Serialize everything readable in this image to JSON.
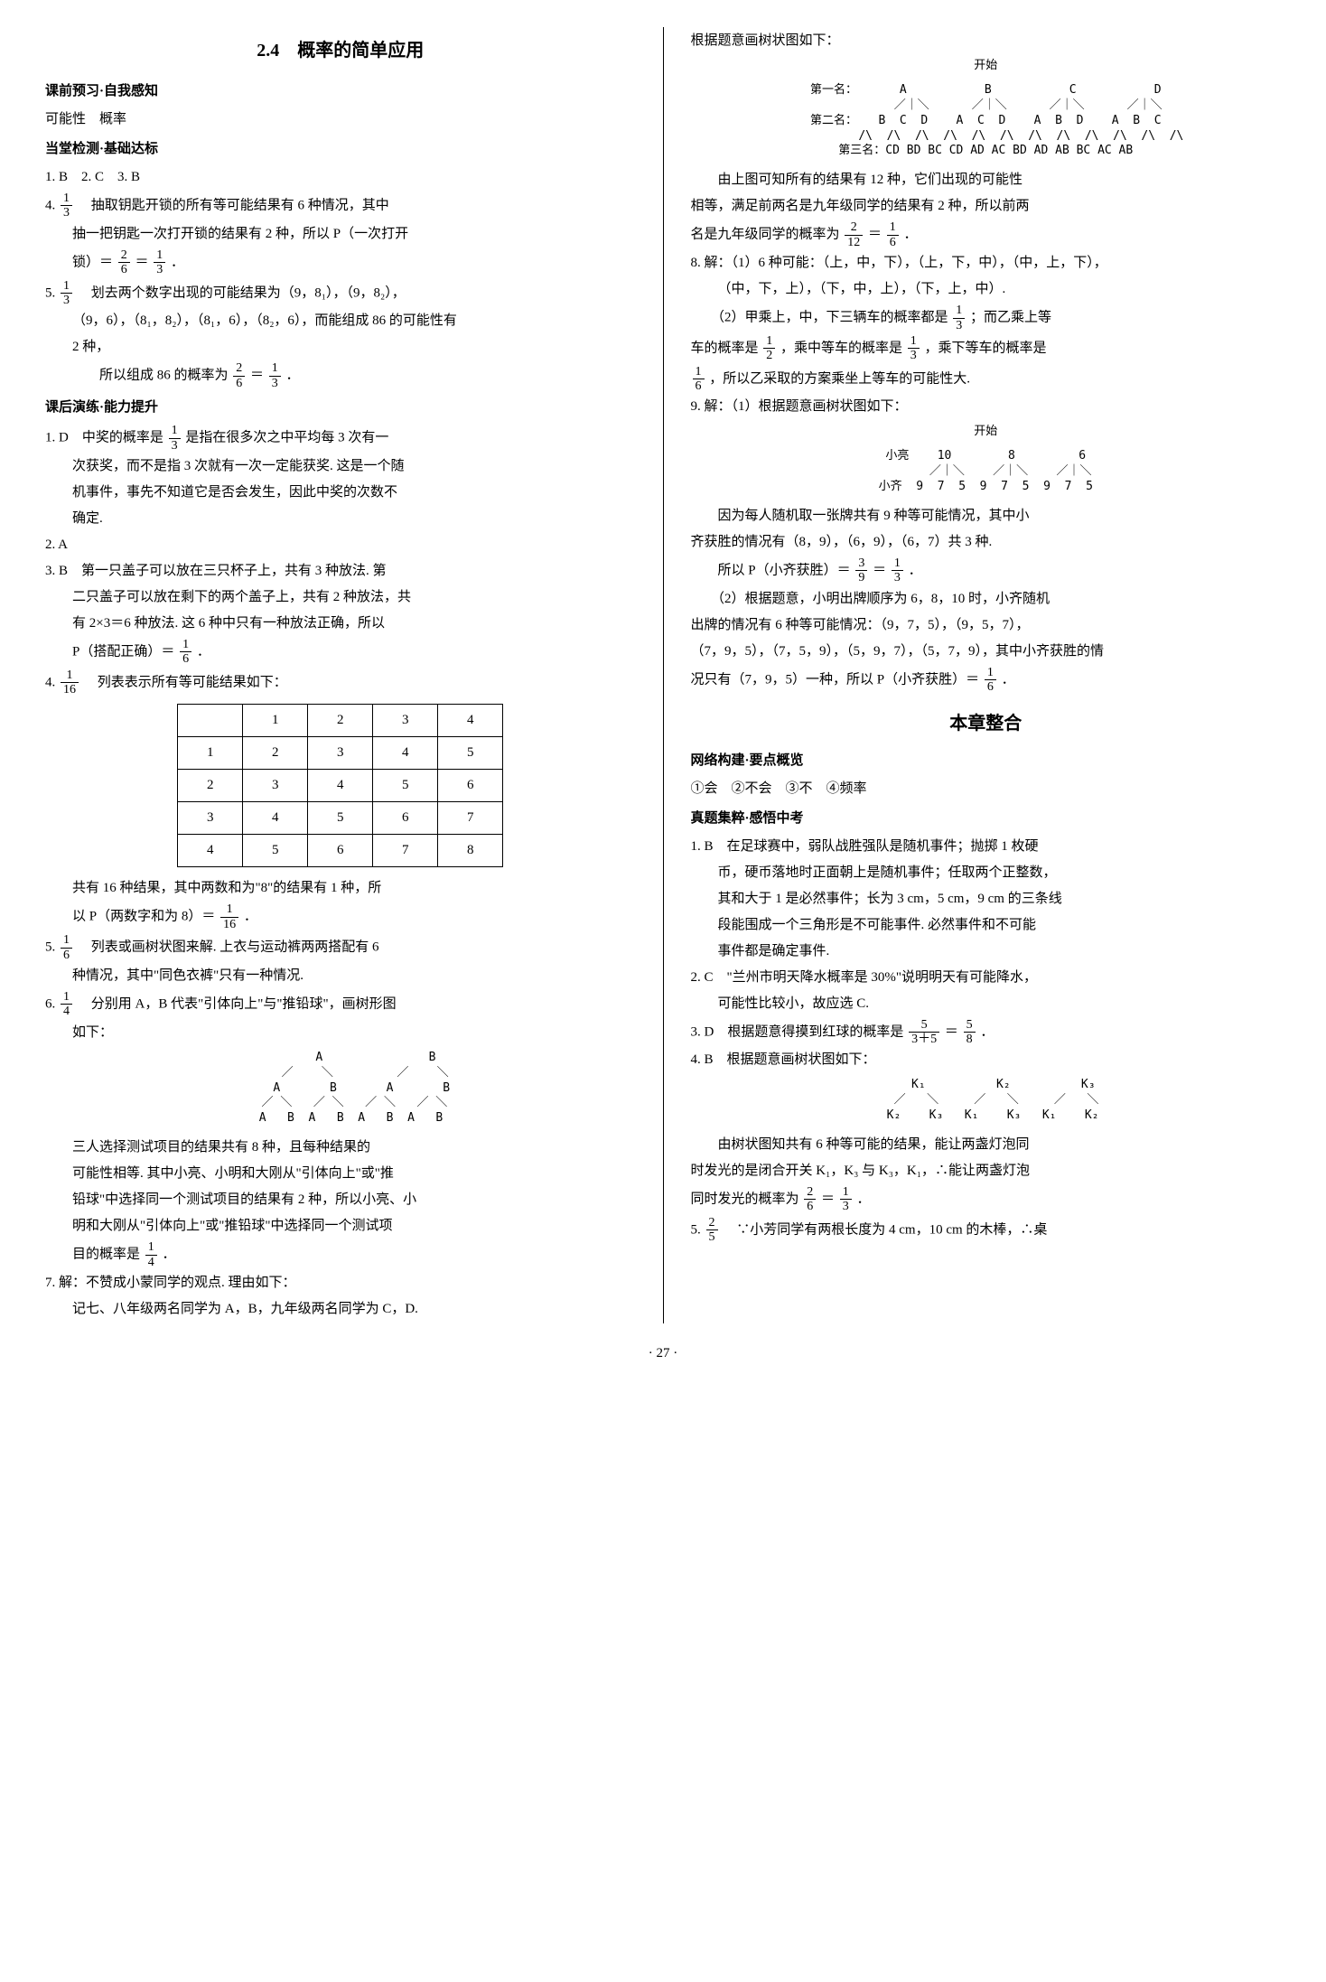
{
  "left": {
    "title": "2.4　概率的简单应用",
    "h1": "课前预习·自我感知",
    "l1": "可能性　概率",
    "h2": "当堂检测·基础达标",
    "l2": "1. B　2. C　3. B",
    "q4_lead": "4. ",
    "q4_frac": {
      "n": "1",
      "d": "3"
    },
    "q4a": "　抽取钥匙开锁的所有等可能结果有 6 种情况，其中",
    "q4b": "抽一把钥匙一次打开锁的结果有 2 种，所以 P（一次打开",
    "q4c_pre": "锁）＝",
    "q4c_f1": {
      "n": "2",
      "d": "6"
    },
    "q4c_mid": "＝",
    "q4c_f2": {
      "n": "1",
      "d": "3"
    },
    "q4c_end": "．",
    "q5_lead": "5. ",
    "q5_frac": {
      "n": "1",
      "d": "3"
    },
    "q5a": "　划去两个数字出现的可能结果为（9，8₁），（9，8₂），",
    "q5b": "（9，6），（8₁，8₂），（8₁，6），（8₂，6），而能组成 86 的可能性有",
    "q5c": "2 种，",
    "q5d_pre": "　　所以组成 86 的概率为",
    "q5d_f1": {
      "n": "2",
      "d": "6"
    },
    "q5d_mid": "＝",
    "q5d_f2": {
      "n": "1",
      "d": "3"
    },
    "q5d_end": "．",
    "h3": "课后演练·能力提升",
    "p1_lead": "1. D　中奖的概率是",
    "p1_frac": {
      "n": "1",
      "d": "3"
    },
    "p1a": "是指在很多次之中平均每 3 次有一",
    "p1b": "次获奖，而不是指 3 次就有一次一定能获奖. 这是一个随",
    "p1c": "机事件，事先不知道它是否会发生，因此中奖的次数不",
    "p1d": "确定.",
    "p2": "2. A",
    "p3a": "3. B　第一只盖子可以放在三只杯子上，共有 3 种放法. 第",
    "p3b": "二只盖子可以放在剩下的两个盖子上，共有 2 种放法，共",
    "p3c": "有 2×3＝6 种放法. 这 6 种中只有一种放法正确，所以",
    "p3d_pre": "P（搭配正确）＝",
    "p3d_f": {
      "n": "1",
      "d": "6"
    },
    "p3d_end": "．",
    "p4_lead": "4. ",
    "p4_frac": {
      "n": "1",
      "d": "16"
    },
    "p4a": "　列表表示所有等可能结果如下：",
    "tbl": {
      "head": [
        "",
        "1",
        "2",
        "3",
        "4"
      ],
      "rows": [
        [
          "1",
          "2",
          "3",
          "4",
          "5"
        ],
        [
          "2",
          "3",
          "4",
          "5",
          "6"
        ],
        [
          "3",
          "4",
          "5",
          "6",
          "7"
        ],
        [
          "4",
          "5",
          "6",
          "7",
          "8"
        ]
      ]
    },
    "p4b": "　　共有 16 种结果，其中两数和为\"8\"的结果有 1 种，所",
    "p4c_pre": "以 P（两数字和为 8）＝",
    "p4c_f": {
      "n": "1",
      "d": "16"
    },
    "p4c_end": "．",
    "p5_lead": "5. ",
    "p5_frac": {
      "n": "1",
      "d": "6"
    },
    "p5a": "　列表或画树状图来解. 上衣与运动裤两两搭配有 6",
    "p5b": "种情况，其中\"同色衣裤\"只有一种情况.",
    "p6_lead": "6. ",
    "p6_frac": {
      "n": "1",
      "d": "4"
    },
    "p6a": "　分别用 A，B 代表\"引体向上\"与\"推铅球\"，画树形图",
    "p6b": "如下：",
    "tree1": "          A               B\n       ／    ＼         ／    ＼\n      A       B       A       B\n    ／ ＼   ／ ＼   ／ ＼   ／ ＼\n   A   B  A   B  A   B  A   B",
    "p6c": "　　三人选择测试项目的结果共有 8 种，且每种结果的",
    "p6d": "可能性相等. 其中小亮、小明和大刚从\"引体向上\"或\"推",
    "p6e": "铅球\"中选择同一个测试项目的结果有 2 种，所以小亮、小",
    "p6f": "明和大刚从\"引体向上\"或\"推铅球\"中选择同一个测试项",
    "p6g_pre": "目的概率是",
    "p6g_f": {
      "n": "1",
      "d": "4"
    },
    "p6g_end": "．",
    "p7a": "7. 解：不赞成小蒙同学的观点. 理由如下：",
    "p7b": "　　记七、八年级两名同学为 A，B，九年级两名同学为 C，D."
  },
  "right": {
    "r0": "根据题意画树状图如下：",
    "tree2_title": "开始",
    "tree2": "第一名：      A           B           C           D\n            ／｜＼      ／｜＼      ／｜＼      ／｜＼\n第二名：   B  C  D    A  C  D    A  B  D    A  B  C\n          /\\  /\\  /\\  /\\  /\\  /\\  /\\  /\\  /\\  /\\  /\\  /\\\n第三名：CD BD BC CD AD AC BD AD AB BC AC AB",
    "r1": "　　由上图可知所有的结果有 12 种，它们出现的可能性",
    "r2": "相等，满足前两名是九年级同学的结果有 2 种，所以前两",
    "r3_pre": "名是九年级同学的概率为",
    "r3_f1": {
      "n": "2",
      "d": "12"
    },
    "r3_mid": "＝",
    "r3_f2": {
      "n": "1",
      "d": "6"
    },
    "r3_end": "．",
    "q8a": "8. 解：（1）6 种可能：（上，中，下），（上，下，中），（中，上，下），",
    "q8b": "（中，下，上），（下，中，上），（下，上，中）.",
    "q8c_pre": "　　（2）甲乘上，中，下三辆车的概率都是",
    "q8c_f": {
      "n": "1",
      "d": "3"
    },
    "q8c_end": "；而乙乘上等",
    "q8d_pre": "车的概率是",
    "q8d_f1": {
      "n": "1",
      "d": "2"
    },
    "q8d_mid": "，乘中等车的概率是",
    "q8d_f2": {
      "n": "1",
      "d": "3"
    },
    "q8d_end": "，乘下等车的概率是",
    "q8e_f": {
      "n": "1",
      "d": "6"
    },
    "q8e": "，所以乙采取的方案乘坐上等车的可能性大.",
    "q9a": "9. 解：（1）根据题意画树状图如下：",
    "tree3_title": "开始",
    "tree3": "小亮    10        8         6\n       ／｜＼    ／｜＼    ／｜＼\n小齐  9  7  5  9  7  5  9  7  5",
    "q9b": "　　因为每人随机取一张牌共有 9 种等可能情况，其中小",
    "q9c": "齐获胜的情况有（8，9），（6，9），（6，7）共 3 种.",
    "q9d_pre": "　　所以 P（小齐获胜）＝",
    "q9d_f1": {
      "n": "3",
      "d": "9"
    },
    "q9d_mid": "＝",
    "q9d_f2": {
      "n": "1",
      "d": "3"
    },
    "q9d_end": "．",
    "q9e": "　　（2）根据题意，小明出牌顺序为 6，8，10 时，小齐随机",
    "q9f": "出牌的情况有 6 种等可能情况：（9，7，5），（9，5，7），",
    "q9g": "（7，9，5），（7，5，9），（5，9，7），（5，7，9），其中小齐获胜的情",
    "q9h_pre": "况只有（7，9，5）一种，所以 P（小齐获胜）＝",
    "q9h_f": {
      "n": "1",
      "d": "6"
    },
    "q9h_end": "．",
    "chap_title": "本章整合",
    "hA": "网络构建·要点概览",
    "lA": "①会　②不会　③不　④频率",
    "hB": "真题集粹·感悟中考",
    "b1a": "1. B　在足球赛中，弱队战胜强队是随机事件；抛掷 1 枚硬",
    "b1b": "币，硬币落地时正面朝上是随机事件；任取两个正整数，",
    "b1c": "其和大于 1 是必然事件；长为 3 cm，5 cm，9 cm 的三条线",
    "b1d": "段能围成一个三角形是不可能事件. 必然事件和不可能",
    "b1e": "事件都是确定事件.",
    "b2a": "2. C　\"兰州市明天降水概率是 30%\"说明明天有可能降水，",
    "b2b": "可能性比较小，故应选 C.",
    "b3_pre": "3. D　根据题意得摸到红球的概率是",
    "b3_f1": {
      "n": "5",
      "d": "3＋5"
    },
    "b3_mid": "＝",
    "b3_f2": {
      "n": "5",
      "d": "8"
    },
    "b3_end": "．",
    "b4a": "4. B　根据题意画树状图如下：",
    "tree4": "     K₁          K₂          K₃\n   ／   ＼     ／   ＼     ／   ＼\n  K₂    K₃   K₁    K₃   K₁    K₂",
    "b4b": "　　由树状图知共有 6 种等可能的结果，能让两盏灯泡同",
    "b4c": "时发光的是闭合开关 K₁，K₃ 与 K₃，K₁，∴能让两盏灯泡",
    "b4d_pre": "同时发光的概率为",
    "b4d_f1": {
      "n": "2",
      "d": "6"
    },
    "b4d_mid": "＝",
    "b4d_f2": {
      "n": "1",
      "d": "3"
    },
    "b4d_end": "．",
    "b5_lead": "5. ",
    "b5_f": {
      "n": "2",
      "d": "5"
    },
    "b5a": "　∵小芳同学有两根长度为 4 cm，10 cm 的木棒，∴桌"
  },
  "pagenum": "· 27 ·"
}
